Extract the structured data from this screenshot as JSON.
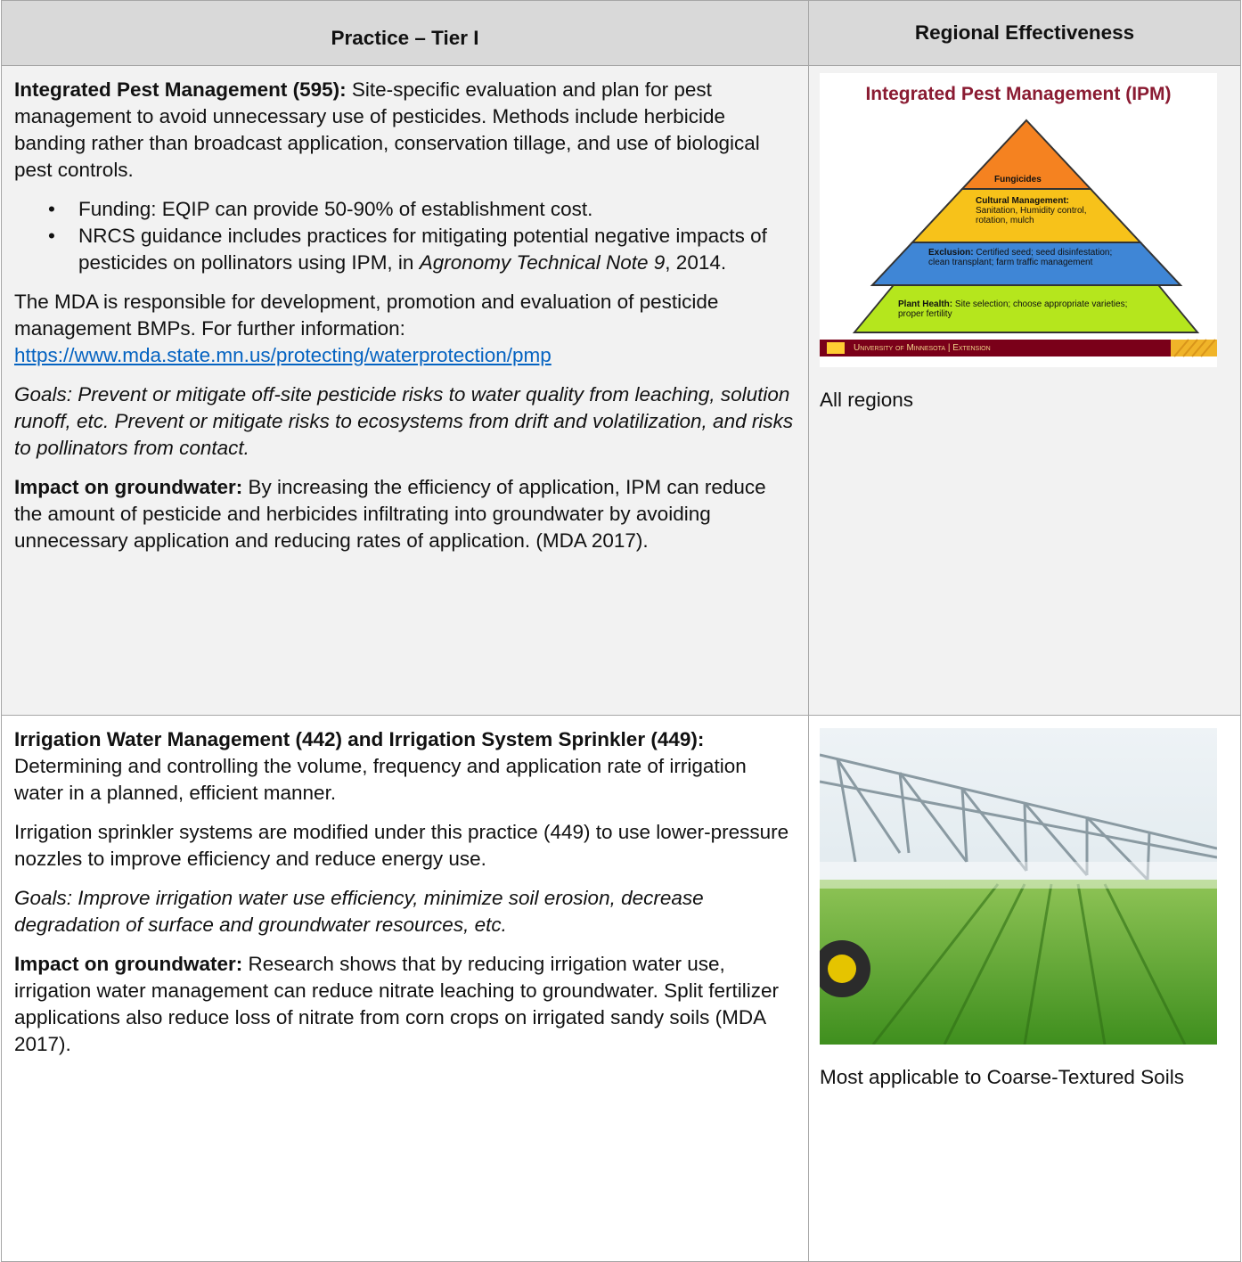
{
  "table": {
    "header": [
      "Practice – Tier I",
      "Regional Effectiveness"
    ],
    "rows": [
      {
        "practice": {
          "intro": {
            "lead": "Integrated Pest Management (595):",
            "text": "Site-specific evaluation and plan for pest management to avoid unnecessary use of pesticides. Methods include herbicide banding rather than broadcast application, conservation tillage, and use of biological pest controls."
          },
          "bullets": [
            {
              "text": "Funding: EQIP can provide 50-90% of establishment cost."
            },
            {
              "text": "NRCS guidance includes practices for mitigating potential negative impacts of pesticides on pollinators using IPM, in",
              "italic": "Agronomy Technical Note 9",
              "after": ", 2014."
            }
          ],
          "info": {
            "text": "The MDA is responsible for development, promotion and evaluation of pesticide management BMPs. For further information:",
            "link": "https://www.mda.state.mn.us/protecting/waterprotection/pmp"
          },
          "goals": "Goals: Prevent or mitigate off-site pesticide risks to water quality from leaching, solution runoff, etc. Prevent or mitigate risks to ecosystems from drift and volatilization, and risks to pollinators from contact.",
          "impact": {
            "lead": "Impact on groundwater:",
            "text": "By increasing the efficiency of application, IPM can reduce the amount of pesticide and herbicides infiltrating into groundwater by avoiding unnecessary application and reducing rates of application. (MDA 2017)."
          }
        },
        "figure": {
          "title": "Integrated Pest Management (IPM)",
          "tiers": [
            {
              "text": "Fungicides"
            },
            {
              "lead": "Cultural Management:",
              "text": "Sanitation, Humidity control, rotation, mulch"
            },
            {
              "lead": "Exclusion:",
              "text": "Certified seed; seed disinfestation; clean transplant; farm traffic management"
            },
            {
              "lead": "Plant Health:",
              "text": "Site selection; choose appropriate varieties; proper fertility"
            }
          ],
          "footer": "University of Minnesota | Extension"
        },
        "effectiveness": "All regions"
      },
      {
        "practice": {
          "intro": {
            "lead": "Irrigation Water Management (442) and Irrigation System Sprinkler (449):",
            "text": "Determining and controlling the volume, frequency and application rate of irrigation water in a planned, efficient manner."
          },
          "detail": "Irrigation sprinkler systems are modified under this practice (449) to use lower-pressure nozzles to improve efficiency and reduce energy use.",
          "goals": "Goals: Improve irrigation water use efficiency, minimize soil erosion, decrease degradation of surface and groundwater resources, etc.",
          "impact": {
            "lead": "Impact on groundwater:",
            "text": "Research shows that by reducing irrigation water use, irrigation water management can reduce nitrate leaching to groundwater. Split fertilizer applications also reduce loss of nitrate from corn crops on irrigated sandy soils (MDA 2017)."
          }
        },
        "effectiveness": "Most applicable to Coarse-Textured Soils"
      }
    ]
  }
}
